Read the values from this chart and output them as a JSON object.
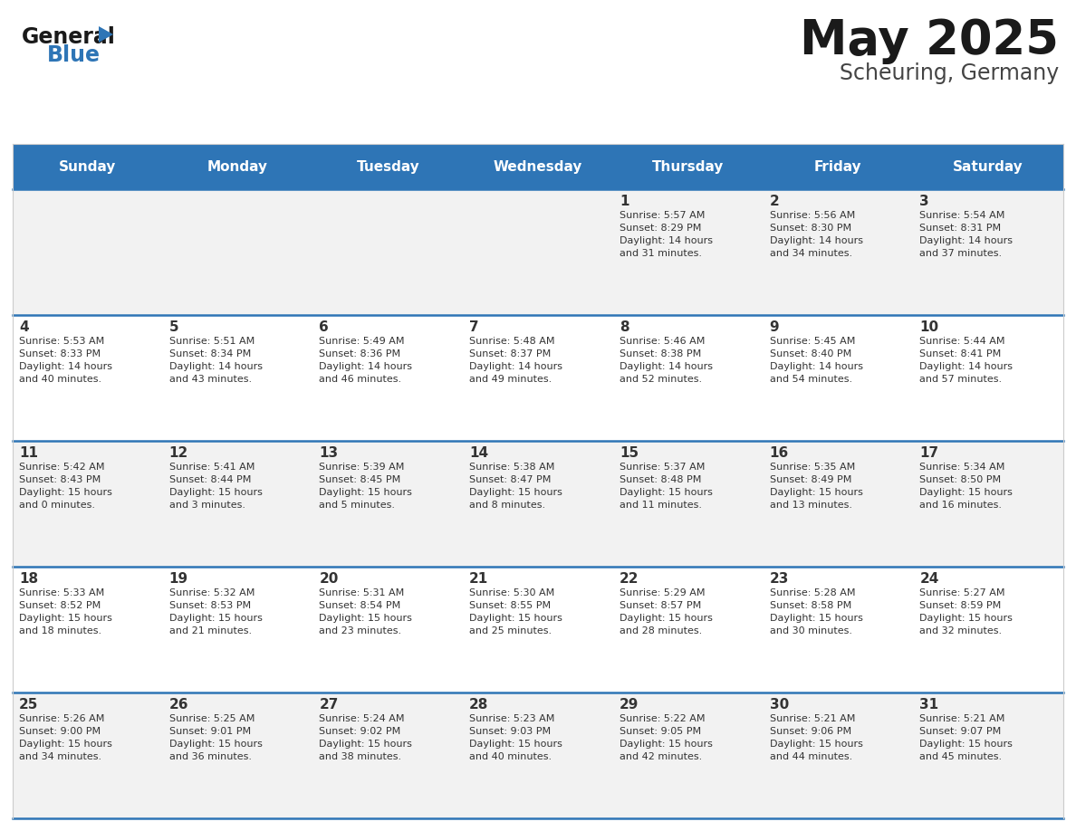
{
  "title": "May 2025",
  "subtitle": "Scheuring, Germany",
  "header_bg": "#2E75B6",
  "header_text_color": "#FFFFFF",
  "cell_bg_even": "#F2F2F2",
  "cell_bg_odd": "#FFFFFF",
  "separator_color": "#2E75B6",
  "text_color": "#333333",
  "days_of_week": [
    "Sunday",
    "Monday",
    "Tuesday",
    "Wednesday",
    "Thursday",
    "Friday",
    "Saturday"
  ],
  "calendar_data": [
    [
      {
        "day": null,
        "info": null
      },
      {
        "day": null,
        "info": null
      },
      {
        "day": null,
        "info": null
      },
      {
        "day": null,
        "info": null
      },
      {
        "day": "1",
        "info": "Sunrise: 5:57 AM\nSunset: 8:29 PM\nDaylight: 14 hours\nand 31 minutes."
      },
      {
        "day": "2",
        "info": "Sunrise: 5:56 AM\nSunset: 8:30 PM\nDaylight: 14 hours\nand 34 minutes."
      },
      {
        "day": "3",
        "info": "Sunrise: 5:54 AM\nSunset: 8:31 PM\nDaylight: 14 hours\nand 37 minutes."
      }
    ],
    [
      {
        "day": "4",
        "info": "Sunrise: 5:53 AM\nSunset: 8:33 PM\nDaylight: 14 hours\nand 40 minutes."
      },
      {
        "day": "5",
        "info": "Sunrise: 5:51 AM\nSunset: 8:34 PM\nDaylight: 14 hours\nand 43 minutes."
      },
      {
        "day": "6",
        "info": "Sunrise: 5:49 AM\nSunset: 8:36 PM\nDaylight: 14 hours\nand 46 minutes."
      },
      {
        "day": "7",
        "info": "Sunrise: 5:48 AM\nSunset: 8:37 PM\nDaylight: 14 hours\nand 49 minutes."
      },
      {
        "day": "8",
        "info": "Sunrise: 5:46 AM\nSunset: 8:38 PM\nDaylight: 14 hours\nand 52 minutes."
      },
      {
        "day": "9",
        "info": "Sunrise: 5:45 AM\nSunset: 8:40 PM\nDaylight: 14 hours\nand 54 minutes."
      },
      {
        "day": "10",
        "info": "Sunrise: 5:44 AM\nSunset: 8:41 PM\nDaylight: 14 hours\nand 57 minutes."
      }
    ],
    [
      {
        "day": "11",
        "info": "Sunrise: 5:42 AM\nSunset: 8:43 PM\nDaylight: 15 hours\nand 0 minutes."
      },
      {
        "day": "12",
        "info": "Sunrise: 5:41 AM\nSunset: 8:44 PM\nDaylight: 15 hours\nand 3 minutes."
      },
      {
        "day": "13",
        "info": "Sunrise: 5:39 AM\nSunset: 8:45 PM\nDaylight: 15 hours\nand 5 minutes."
      },
      {
        "day": "14",
        "info": "Sunrise: 5:38 AM\nSunset: 8:47 PM\nDaylight: 15 hours\nand 8 minutes."
      },
      {
        "day": "15",
        "info": "Sunrise: 5:37 AM\nSunset: 8:48 PM\nDaylight: 15 hours\nand 11 minutes."
      },
      {
        "day": "16",
        "info": "Sunrise: 5:35 AM\nSunset: 8:49 PM\nDaylight: 15 hours\nand 13 minutes."
      },
      {
        "day": "17",
        "info": "Sunrise: 5:34 AM\nSunset: 8:50 PM\nDaylight: 15 hours\nand 16 minutes."
      }
    ],
    [
      {
        "day": "18",
        "info": "Sunrise: 5:33 AM\nSunset: 8:52 PM\nDaylight: 15 hours\nand 18 minutes."
      },
      {
        "day": "19",
        "info": "Sunrise: 5:32 AM\nSunset: 8:53 PM\nDaylight: 15 hours\nand 21 minutes."
      },
      {
        "day": "20",
        "info": "Sunrise: 5:31 AM\nSunset: 8:54 PM\nDaylight: 15 hours\nand 23 minutes."
      },
      {
        "day": "21",
        "info": "Sunrise: 5:30 AM\nSunset: 8:55 PM\nDaylight: 15 hours\nand 25 minutes."
      },
      {
        "day": "22",
        "info": "Sunrise: 5:29 AM\nSunset: 8:57 PM\nDaylight: 15 hours\nand 28 minutes."
      },
      {
        "day": "23",
        "info": "Sunrise: 5:28 AM\nSunset: 8:58 PM\nDaylight: 15 hours\nand 30 minutes."
      },
      {
        "day": "24",
        "info": "Sunrise: 5:27 AM\nSunset: 8:59 PM\nDaylight: 15 hours\nand 32 minutes."
      }
    ],
    [
      {
        "day": "25",
        "info": "Sunrise: 5:26 AM\nSunset: 9:00 PM\nDaylight: 15 hours\nand 34 minutes."
      },
      {
        "day": "26",
        "info": "Sunrise: 5:25 AM\nSunset: 9:01 PM\nDaylight: 15 hours\nand 36 minutes."
      },
      {
        "day": "27",
        "info": "Sunrise: 5:24 AM\nSunset: 9:02 PM\nDaylight: 15 hours\nand 38 minutes."
      },
      {
        "day": "28",
        "info": "Sunrise: 5:23 AM\nSunset: 9:03 PM\nDaylight: 15 hours\nand 40 minutes."
      },
      {
        "day": "29",
        "info": "Sunrise: 5:22 AM\nSunset: 9:05 PM\nDaylight: 15 hours\nand 42 minutes."
      },
      {
        "day": "30",
        "info": "Sunrise: 5:21 AM\nSunset: 9:06 PM\nDaylight: 15 hours\nand 44 minutes."
      },
      {
        "day": "31",
        "info": "Sunrise: 5:21 AM\nSunset: 9:07 PM\nDaylight: 15 hours\nand 45 minutes."
      }
    ]
  ],
  "logo_general_color": "#1a1a1a",
  "logo_blue_color": "#2E75B6",
  "logo_triangle_color": "#2E75B6",
  "title_fontsize": 38,
  "subtitle_fontsize": 17,
  "dow_fontsize": 11,
  "day_num_fontsize": 11,
  "info_fontsize": 8.0
}
